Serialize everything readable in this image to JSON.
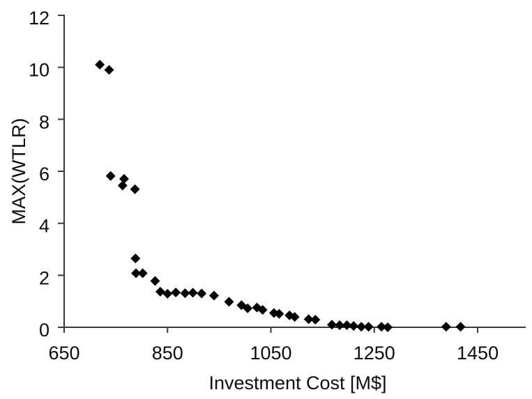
{
  "chart_data": {
    "type": "scatter",
    "title": "",
    "xlabel": "Investment Cost [M$]",
    "ylabel": "MAX(WTLR)",
    "xlim": [
      650,
      1543
    ],
    "ylim": [
      0,
      12
    ],
    "x_ticks": [
      650,
      850,
      1050,
      1250,
      1450
    ],
    "y_ticks": [
      0,
      2,
      4,
      6,
      8,
      10,
      12
    ],
    "grid": false,
    "legend": false,
    "marker": {
      "shape": "diamond",
      "color": "#000000",
      "size": 14
    },
    "axis_color": "#3a3a3a",
    "text_color": "#0d0d0d",
    "background_color": "#ffffff",
    "points": [
      [
        719,
        10.1
      ],
      [
        737,
        9.9
      ],
      [
        740,
        5.82
      ],
      [
        766,
        5.71
      ],
      [
        763,
        5.45
      ],
      [
        787,
        5.31
      ],
      [
        788,
        2.65
      ],
      [
        789,
        2.08
      ],
      [
        802,
        2.08
      ],
      [
        826,
        1.78
      ],
      [
        836,
        1.37
      ],
      [
        850,
        1.29
      ],
      [
        866,
        1.34
      ],
      [
        884,
        1.31
      ],
      [
        899,
        1.33
      ],
      [
        916,
        1.3
      ],
      [
        940,
        1.22
      ],
      [
        969,
        0.98
      ],
      [
        993,
        0.85
      ],
      [
        1005,
        0.73
      ],
      [
        1023,
        0.76
      ],
      [
        1034,
        0.67
      ],
      [
        1056,
        0.55
      ],
      [
        1066,
        0.52
      ],
      [
        1086,
        0.46
      ],
      [
        1096,
        0.4
      ],
      [
        1123,
        0.31
      ],
      [
        1136,
        0.29
      ],
      [
        1168,
        0.1
      ],
      [
        1183,
        0.08
      ],
      [
        1197,
        0.08
      ],
      [
        1210,
        0.05
      ],
      [
        1225,
        0.02
      ],
      [
        1239,
        0.02
      ],
      [
        1264,
        0.02
      ],
      [
        1276,
        0.0
      ],
      [
        1389,
        0.02
      ],
      [
        1417,
        0.02
      ]
    ]
  }
}
